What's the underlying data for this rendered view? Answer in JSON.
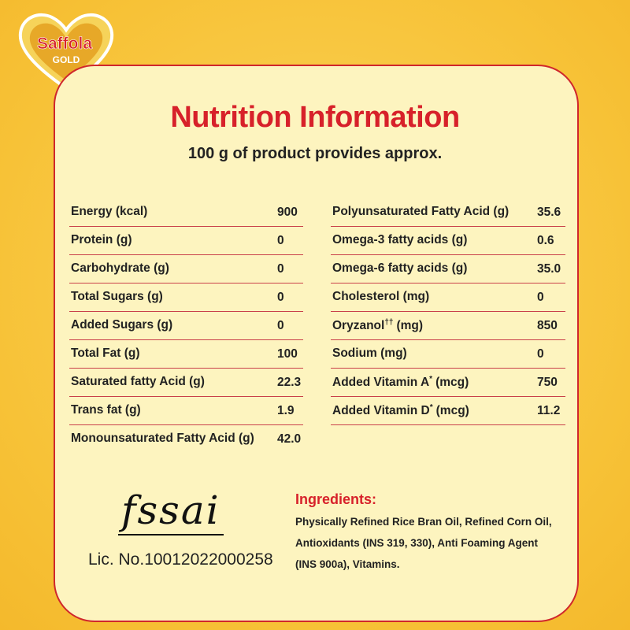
{
  "logo": {
    "brand": "Saffola",
    "variant": "GOLD"
  },
  "title": "Nutrition Information",
  "subtitle": "100 g of product provides approx.",
  "left_table": [
    {
      "name": "Energy (kcal)",
      "value": "900"
    },
    {
      "name": "Protein (g)",
      "value": "0"
    },
    {
      "name": "Carbohydrate (g)",
      "value": "0"
    },
    {
      "name": "Total Sugars (g)",
      "value": "0"
    },
    {
      "name": "Added Sugars (g)",
      "value": "0"
    },
    {
      "name": "Total Fat (g)",
      "value": "100"
    },
    {
      "name": "Saturated fatty Acid (g)",
      "value": "22.3"
    },
    {
      "name": "Trans fat (g)",
      "value": "1.9"
    },
    {
      "name": "Monounsaturated Fatty Acid (g)",
      "value": "42.0"
    }
  ],
  "right_table": [
    {
      "name": "Polyunsaturated Fatty Acid (g)",
      "value": "35.6"
    },
    {
      "name": "Omega-3 fatty acids (g)",
      "value": "0.6"
    },
    {
      "name": "Omega-6 fatty acids (g)",
      "value": "35.0"
    },
    {
      "name": "Cholesterol (mg)",
      "value": "0"
    },
    {
      "name": "Oryzanol",
      "sup": "††",
      "unit": "(mg)",
      "value": "850"
    },
    {
      "name": "Sodium (mg)",
      "value": "0"
    },
    {
      "name": "Added Vitamin A",
      "sup": "*",
      "unit": "(mcg)",
      "value": "750"
    },
    {
      "name": "Added Vitamin D",
      "sup": "*",
      "unit": "(mcg)",
      "value": "11.2"
    }
  ],
  "fssai": {
    "logo": "fssai",
    "license": "Lic. No.10012022000258"
  },
  "ingredients": {
    "heading": "Ingredients:",
    "lines": [
      "Physically Refined Rice Bran Oil, Refined Corn Oil,",
      "Antioxidants (INS 319, 330), Anti Foaming Agent",
      "(INS 900a), Vitamins."
    ]
  }
}
